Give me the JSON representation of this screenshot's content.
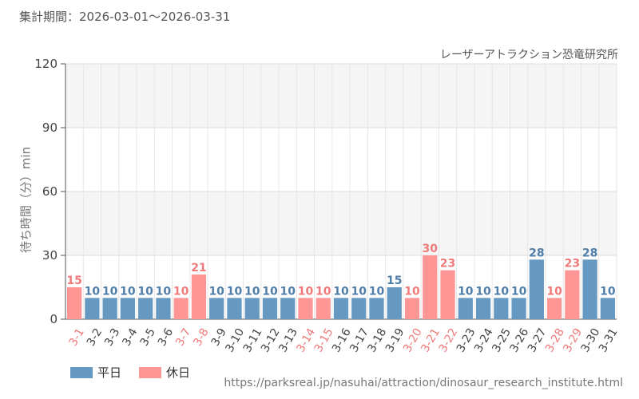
{
  "header": {
    "subtitle": "集計期間：2026-03-01〜2026-03-31",
    "source": "レーザーアトラクション恐竜研究所"
  },
  "footer": {
    "url": "https://parksreal.jp/nasuhai/attraction/dinosaur_research_institute.html"
  },
  "colors": {
    "weekday": "#6699c2",
    "holiday": "#ff9696",
    "weekday_label": "#4f7ea8",
    "holiday_label": "#f07a7a"
  },
  "chart_data": {
    "type": "bar",
    "ylabel": "待ち時間（分）min",
    "ylim": [
      0,
      120
    ],
    "yticks": [
      0,
      30,
      60,
      90,
      120
    ],
    "grid": true,
    "legend_position": "bottom-left",
    "legend": [
      {
        "key": "weekday",
        "label": "平日"
      },
      {
        "key": "holiday",
        "label": "休日"
      }
    ],
    "categories": [
      "3-1",
      "3-2",
      "3-3",
      "3-4",
      "3-5",
      "3-6",
      "3-7",
      "3-8",
      "3-9",
      "3-10",
      "3-11",
      "3-12",
      "3-13",
      "3-14",
      "3-15",
      "3-16",
      "3-17",
      "3-18",
      "3-19",
      "3-20",
      "3-21",
      "3-22",
      "3-23",
      "3-24",
      "3-25",
      "3-26",
      "3-27",
      "3-28",
      "3-29",
      "3-30",
      "3-31"
    ],
    "values": [
      15,
      10,
      10,
      10,
      10,
      10,
      10,
      21,
      10,
      10,
      10,
      10,
      10,
      10,
      10,
      10,
      10,
      10,
      15,
      10,
      30,
      23,
      10,
      10,
      10,
      10,
      28,
      10,
      23,
      28,
      10
    ],
    "day_type": [
      "holiday",
      "weekday",
      "weekday",
      "weekday",
      "weekday",
      "weekday",
      "holiday",
      "holiday",
      "weekday",
      "weekday",
      "weekday",
      "weekday",
      "weekday",
      "holiday",
      "holiday",
      "weekday",
      "weekday",
      "weekday",
      "weekday",
      "holiday",
      "holiday",
      "holiday",
      "weekday",
      "weekday",
      "weekday",
      "weekday",
      "weekday",
      "holiday",
      "holiday",
      "weekday",
      "weekday"
    ]
  }
}
